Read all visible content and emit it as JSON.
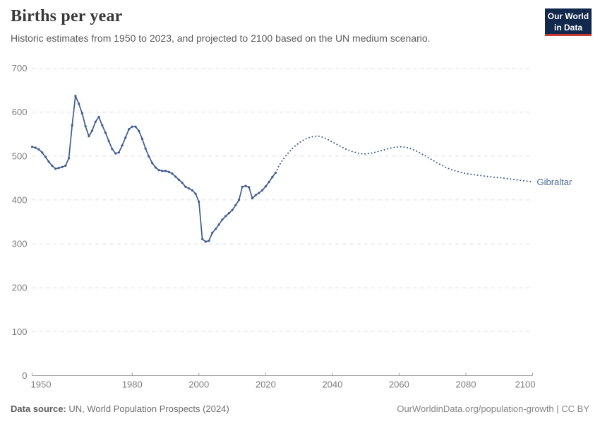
{
  "header": {
    "title": "Births per year",
    "subtitle": "Historic estimates from 1950 to 2023, and projected to 2100 based on the UN medium scenario."
  },
  "logo": {
    "line1": "Our World",
    "line2": "in Data",
    "bg_color": "#12294d",
    "accent_color": "#c5392f"
  },
  "chart_data": {
    "type": "line",
    "title": "Births per year — Gibraltar",
    "entity_label": "Gibraltar",
    "line_color": "#3d5c8f",
    "entity_label_color": "#4c6a9c",
    "xlabel": "",
    "ylabel": "",
    "x_range": [
      1950,
      2100
    ],
    "ylim": [
      0,
      700
    ],
    "xticks": [
      1950,
      1980,
      2000,
      2020,
      2040,
      2060,
      2080,
      2100
    ],
    "yticks": [
      0,
      100,
      200,
      300,
      400,
      500,
      600,
      700
    ],
    "grid": true,
    "legend_position": "right-end-label",
    "series": [
      {
        "name": "Gibraltar (historic estimates, solid line with markers)",
        "style": "solid-markers",
        "start_year": 1950,
        "end_year": 2023,
        "values": [
          521,
          519,
          515,
          508,
          498,
          487,
          478,
          471,
          473,
          475,
          478,
          495,
          570,
          637,
          619,
          597,
          568,
          545,
          558,
          578,
          589,
          570,
          553,
          534,
          516,
          506,
          508,
          524,
          542,
          561,
          567,
          567,
          557,
          539,
          517,
          499,
          484,
          474,
          468,
          466,
          466,
          464,
          460,
          453,
          446,
          439,
          430,
          426,
          422,
          414,
          396,
          311,
          305,
          307,
          325,
          334,
          344,
          355,
          363,
          370,
          377,
          388,
          400,
          430,
          432,
          429,
          404,
          411,
          416,
          422,
          431,
          441,
          452,
          462
        ]
      },
      {
        "name": "Gibraltar (UN medium scenario projection, dotted line)",
        "style": "dotted",
        "start_year": 2023,
        "end_year": 2100,
        "values": [
          462,
          478,
          490,
          500,
          509,
          517,
          524,
          530,
          535,
          539,
          542,
          544,
          545,
          545,
          543,
          540,
          536,
          532,
          528,
          524,
          520,
          516,
          513,
          510,
          508,
          506,
          505,
          505,
          506,
          507,
          509,
          511,
          513,
          515,
          517,
          519,
          520,
          521,
          521,
          520,
          518,
          515,
          512,
          508,
          504,
          500,
          495,
          491,
          486,
          482,
          478,
          474,
          471,
          468,
          466,
          464,
          462,
          460,
          459,
          458,
          457,
          456,
          455,
          454,
          453,
          452,
          451,
          451,
          450,
          449,
          448,
          447,
          446,
          445,
          444,
          443,
          442,
          441
        ]
      }
    ]
  },
  "footer": {
    "source_label": "Data source:",
    "source_text": " UN, World Population Prospects (2024)",
    "right_text": "OurWorldinData.org/population-growth | CC BY"
  }
}
